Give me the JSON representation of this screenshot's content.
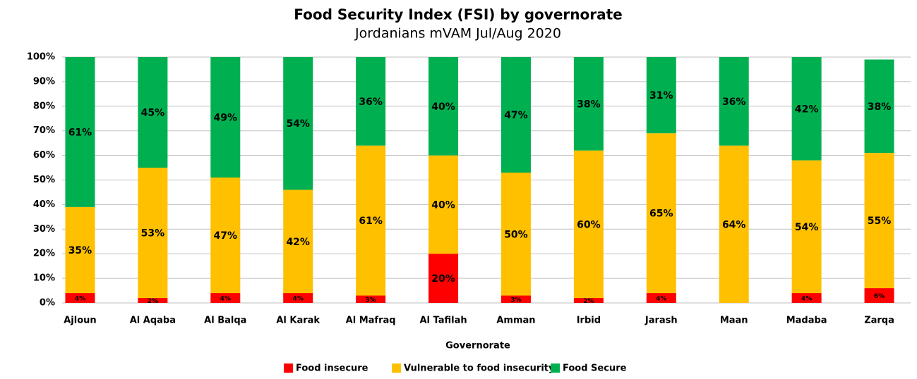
{
  "chart_data": {
    "type": "stacked_bar",
    "title": "Food Security Index (FSI) by governorate",
    "subtitle": "Jordanians mVAM Jul/Aug 2020",
    "x_label": "Governorate",
    "categories": [
      "Ajloun",
      "Al Aqaba",
      "Al Balqa",
      "Al Karak",
      "Al Mafraq",
      "Al Tafilah",
      "Amman",
      "Irbid",
      "Jarash",
      "Maan",
      "Madaba",
      "Zarqa"
    ],
    "series": [
      {
        "name": "Food insecure",
        "color": "#ff0000",
        "values": [
          4,
          2,
          4,
          4,
          3,
          20,
          3,
          2,
          4,
          0,
          4,
          6
        ],
        "value_labels": [
          "4%",
          "2%",
          "4%",
          "4%",
          "3%",
          "20%",
          "3%",
          "2%",
          "4%",
          null,
          "4%",
          "6%"
        ]
      },
      {
        "name": "Vulnerable to food insecurity",
        "color": "#ffc000",
        "values": [
          35,
          53,
          47,
          42,
          61,
          40,
          50,
          60,
          65,
          64,
          54,
          55
        ],
        "value_labels": [
          "35%",
          "53%",
          "47%",
          "42%",
          "61%",
          "40%",
          "50%",
          "60%",
          "65%",
          "64%",
          "54%",
          "55%"
        ]
      },
      {
        "name": "Food Secure",
        "color": "#00b050",
        "values": [
          61,
          45,
          49,
          54,
          36,
          40,
          47,
          38,
          31,
          36,
          42,
          38
        ],
        "value_labels": [
          "61%",
          "45%",
          "49%",
          "54%",
          "36%",
          "40%",
          "47%",
          "38%",
          "31%",
          "36%",
          "42%",
          "38%"
        ]
      }
    ],
    "ylim": [
      0,
      100
    ],
    "yticks": [
      {
        "value": 0,
        "label": "0%"
      },
      {
        "value": 10,
        "label": "10%"
      },
      {
        "value": 20,
        "label": "20%"
      },
      {
        "value": 30,
        "label": "30%"
      },
      {
        "value": 40,
        "label": "40%"
      },
      {
        "value": 50,
        "label": "50%"
      },
      {
        "value": 60,
        "label": "60%"
      },
      {
        "value": 70,
        "label": "70%"
      },
      {
        "value": 80,
        "label": "80%"
      },
      {
        "value": 90,
        "label": "90%"
      },
      {
        "value": 100,
        "label": "100%"
      }
    ],
    "grid": true,
    "legend": "bottom"
  }
}
